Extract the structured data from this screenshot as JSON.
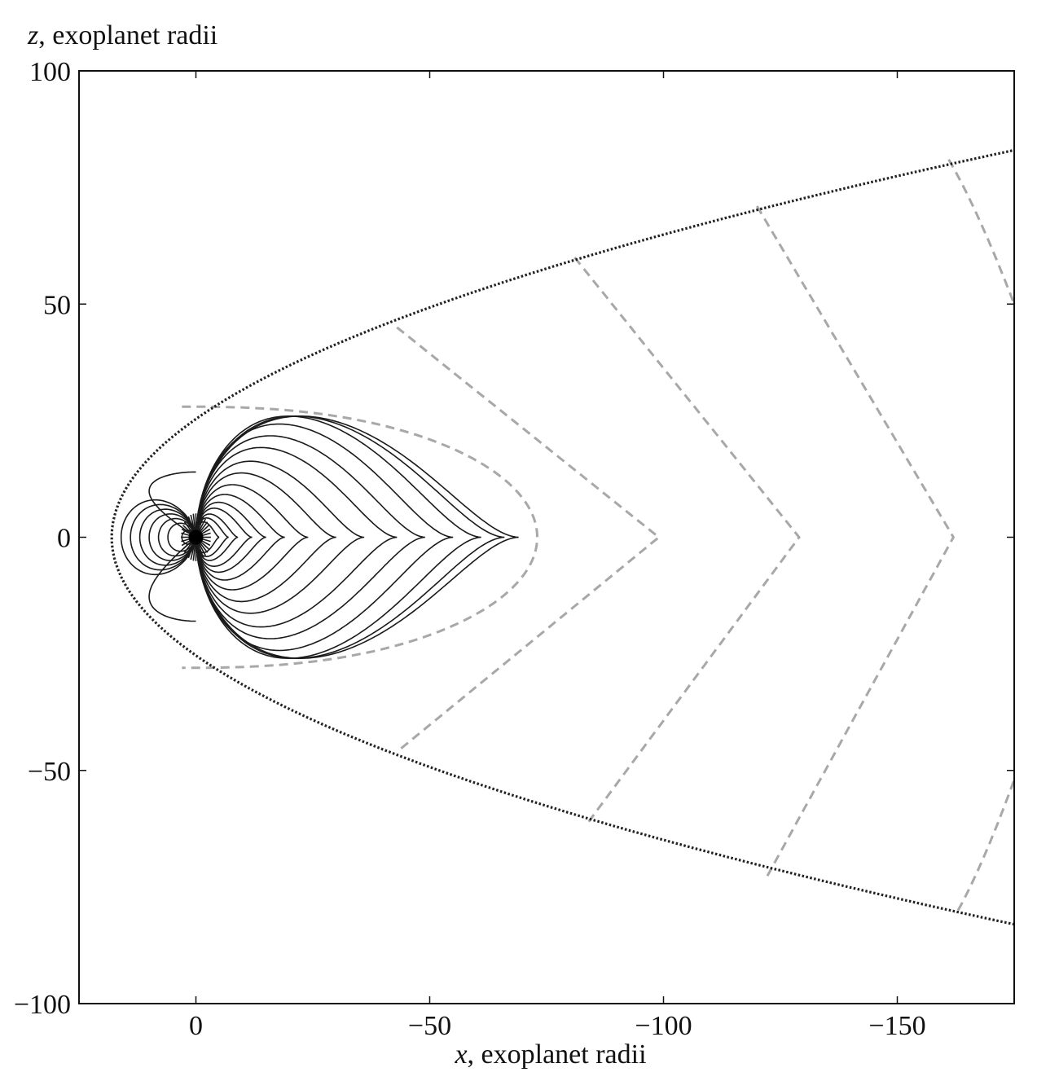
{
  "chart_data": {
    "type": "line",
    "title": "",
    "xlabel": {
      "var": "x",
      "text": ", exoplanet radii"
    },
    "ylabel": {
      "var": "z",
      "text": ", exoplanet radii"
    },
    "xlim": [
      25,
      -175
    ],
    "ylim": [
      -100,
      100
    ],
    "x_ticks": [
      0,
      -50,
      -100,
      -150
    ],
    "x_tick_labels": [
      "0",
      "−50",
      "−100",
      "−150"
    ],
    "y_ticks": [
      100,
      50,
      0,
      -50,
      -100
    ],
    "y_tick_labels": [
      "100",
      "50",
      "0",
      "−50",
      "−100"
    ],
    "grid": false,
    "legend": "none",
    "colors": {
      "field_line": "#1a1a1a",
      "dashed_line": "#a8a8a8",
      "magnetopause": "#222222"
    },
    "magnetopause": {
      "style": "dotted",
      "shape": "parabola",
      "nose_x": 18,
      "note_points": [
        [
          18,
          0
        ],
        [
          -80,
          59
        ],
        [
          -175,
          83
        ],
        [
          -80,
          -60
        ],
        [
          -175,
          -84
        ]
      ]
    },
    "dashed_field_lines": {
      "style": "dashed",
      "lines": [
        {
          "start": [
            -43,
            45
          ],
          "tip": [
            -99,
            0
          ],
          "end": [
            -43,
            -46
          ]
        },
        {
          "start": [
            -81,
            60
          ],
          "tip": [
            -129,
            0
          ],
          "end": [
            -84,
            -61
          ]
        },
        {
          "start": [
            -120,
            71
          ],
          "tip": [
            -162,
            0
          ],
          "end": [
            -122,
            -73
          ]
        },
        {
          "start": [
            -161,
            81
          ],
          "end_at_frame_z": 50
        },
        {
          "start": [
            -163,
            -80
          ],
          "end_at_frame_z": -52
        }
      ],
      "closed_loop": {
        "start": [
          3,
          28
        ],
        "tip": [
          -73,
          0
        ],
        "end": [
          3,
          -28
        ]
      }
    },
    "closed_field_lines": {
      "style": "solid",
      "dayside_loops_extent_x": [
        3,
        6,
        8,
        10,
        12,
        14,
        16
      ],
      "nightside_loops_tip_x": [
        -5,
        -7,
        -9,
        -12,
        -15,
        -19,
        -24,
        -30,
        -36,
        -43,
        -49,
        -55,
        -61,
        -66,
        -69
      ],
      "center": [
        0,
        0
      ]
    }
  }
}
